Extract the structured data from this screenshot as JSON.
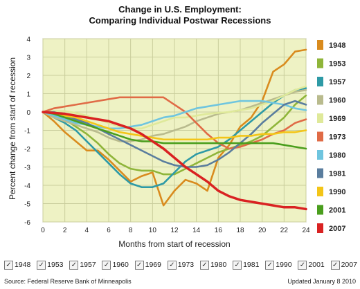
{
  "title_line1": "Change in U.S. Employment:",
  "title_line2": "Comparing Individual Postwar Recessions",
  "source": "Source: Federal Reserve Bank of Minneapolis",
  "updated": "Updated January 8 2010",
  "checkboxes": [
    {
      "label": "1948",
      "checked": true
    },
    {
      "label": "1953",
      "checked": true
    },
    {
      "label": "1957",
      "checked": true
    },
    {
      "label": "1960",
      "checked": true
    },
    {
      "label": "1969",
      "checked": true
    },
    {
      "label": "1973",
      "checked": true
    },
    {
      "label": "1980",
      "checked": true
    },
    {
      "label": "1981",
      "checked": true
    },
    {
      "label": "1990",
      "checked": true
    },
    {
      "label": "2001",
      "checked": true
    },
    {
      "label": "2007",
      "checked": true
    }
  ],
  "check_mark": "✓",
  "chart_data": {
    "type": "line",
    "title": "Change in U.S. Employment: Comparing Individual Postwar Recessions",
    "xlabel": "Months from start of recession",
    "ylabel": "Percent change from start of recession",
    "xlim": [
      0,
      24
    ],
    "ylim": [
      -6,
      4
    ],
    "xticks": [
      0,
      2,
      4,
      6,
      8,
      10,
      12,
      14,
      16,
      18,
      20,
      22,
      24
    ],
    "yticks": [
      4,
      3,
      2,
      1,
      0,
      -1,
      -2,
      -3,
      -4,
      -5,
      -6
    ],
    "grid": true,
    "plot_background": "#eef2c4",
    "legend_position": "right",
    "x": [
      0,
      1,
      2,
      3,
      4,
      5,
      6,
      7,
      8,
      9,
      10,
      11,
      12,
      13,
      14,
      15,
      16,
      17,
      18,
      19,
      20,
      21,
      22,
      23,
      24
    ],
    "series": [
      {
        "name": "1948",
        "color": "#d98b1e",
        "values": [
          0,
          -0.5,
          -1.1,
          -1.6,
          -2.1,
          -2.1,
          -2.6,
          -3.2,
          -3.8,
          -3.5,
          -3.3,
          -5.1,
          -4.3,
          -3.7,
          -3.9,
          -4.3,
          -2.5,
          -1.8,
          -0.8,
          -0.3,
          0.6,
          2.2,
          2.6,
          3.3,
          3.4
        ]
      },
      {
        "name": "1953",
        "color": "#8fb53a",
        "values": [
          0,
          -0.1,
          -0.4,
          -0.8,
          -1.2,
          -1.7,
          -2.3,
          -2.8,
          -3.1,
          -3.2,
          -3.2,
          -3.4,
          -3.4,
          -3.1,
          -2.8,
          -2.5,
          -2.2,
          -2.0,
          -1.8,
          -1.6,
          -1.3,
          -0.8,
          -0.3,
          0.4,
          0.9
        ]
      },
      {
        "name": "1957",
        "color": "#2e9aa6",
        "values": [
          0,
          -0.3,
          -0.6,
          -1.0,
          -1.6,
          -2.2,
          -2.8,
          -3.4,
          -3.9,
          -4.1,
          -4.1,
          -3.9,
          -3.3,
          -2.7,
          -2.3,
          -2.1,
          -1.9,
          -1.5,
          -1.0,
          -0.5,
          0.0,
          0.5,
          0.9,
          1.2,
          1.3
        ]
      },
      {
        "name": "1960",
        "color": "#b9bb8e",
        "values": [
          0,
          -0.3,
          -0.5,
          -0.7,
          -0.9,
          -1.1,
          -1.4,
          -1.6,
          -1.6,
          -1.5,
          -1.3,
          -1.2,
          -1.0,
          -0.8,
          -0.5,
          -0.3,
          -0.1,
          0.0,
          0.1,
          0.3,
          0.5,
          0.7,
          0.9,
          1.1,
          1.2
        ]
      },
      {
        "name": "1969",
        "color": "#dfe99a",
        "values": [
          0,
          0.05,
          0.05,
          -0.05,
          -0.2,
          -0.4,
          -0.6,
          -0.8,
          -0.9,
          -0.9,
          -0.7,
          -0.5,
          -0.3,
          -0.3,
          -0.2,
          -0.1,
          -0.05,
          0.0,
          0.1,
          0.2,
          0.4,
          0.6,
          0.9,
          1.2,
          1.4
        ]
      },
      {
        "name": "1973",
        "color": "#e06b46",
        "values": [
          0,
          0.2,
          0.3,
          0.4,
          0.5,
          0.6,
          0.7,
          0.8,
          0.8,
          0.8,
          0.8,
          0.8,
          0.4,
          0.0,
          -0.6,
          -1.2,
          -1.7,
          -2.0,
          -1.9,
          -1.7,
          -1.5,
          -1.2,
          -1.0,
          -0.6,
          -0.4
        ]
      },
      {
        "name": "1980",
        "color": "#6fc5df",
        "values": [
          0,
          -0.2,
          -0.4,
          -0.6,
          -0.7,
          -0.8,
          -0.9,
          -0.9,
          -0.8,
          -0.7,
          -0.5,
          -0.3,
          -0.2,
          0.0,
          0.2,
          0.3,
          0.4,
          0.5,
          0.6,
          0.6,
          0.6,
          0.5,
          0.4,
          0.2,
          0.1
        ]
      },
      {
        "name": "1981",
        "color": "#5a7d9e",
        "values": [
          0,
          0.0,
          -0.2,
          -0.4,
          -0.6,
          -0.9,
          -1.2,
          -1.5,
          -1.8,
          -2.1,
          -2.4,
          -2.7,
          -2.9,
          -3.0,
          -3.0,
          -2.9,
          -2.6,
          -2.2,
          -1.7,
          -1.2,
          -0.6,
          -0.1,
          0.4,
          0.6,
          0.4
        ]
      },
      {
        "name": "1990",
        "color": "#f3c518",
        "values": [
          0,
          -0.1,
          -0.2,
          -0.3,
          -0.5,
          -0.7,
          -0.9,
          -1.1,
          -1.2,
          -1.3,
          -1.4,
          -1.5,
          -1.5,
          -1.5,
          -1.5,
          -1.5,
          -1.4,
          -1.4,
          -1.3,
          -1.3,
          -1.2,
          -1.2,
          -1.1,
          -1.1,
          -1.0
        ]
      },
      {
        "name": "2001",
        "color": "#4a9e1d",
        "values": [
          0,
          -0.1,
          -0.3,
          -0.5,
          -0.7,
          -0.9,
          -1.1,
          -1.3,
          -1.5,
          -1.6,
          -1.6,
          -1.7,
          -1.7,
          -1.7,
          -1.7,
          -1.7,
          -1.7,
          -1.7,
          -1.7,
          -1.7,
          -1.7,
          -1.7,
          -1.8,
          -1.9,
          -2.0
        ]
      },
      {
        "name": "2007",
        "color": "#d92222",
        "values": [
          0,
          -0.05,
          -0.1,
          -0.2,
          -0.3,
          -0.4,
          -0.5,
          -0.7,
          -0.9,
          -1.2,
          -1.6,
          -2.0,
          -2.5,
          -3.0,
          -3.4,
          -3.8,
          -4.3,
          -4.6,
          -4.8,
          -4.9,
          -5.0,
          -5.1,
          -5.2,
          -5.2,
          -5.3
        ]
      }
    ]
  }
}
